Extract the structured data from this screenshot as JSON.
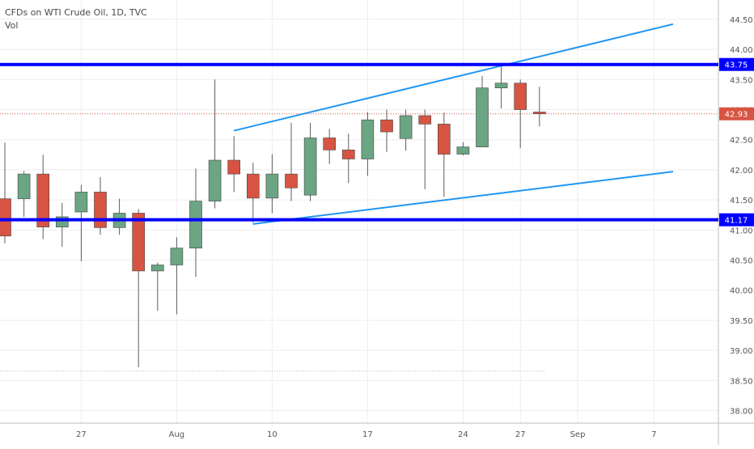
{
  "legend": {
    "title": "CFDs on WTI Crude Oil, 1D, TVC",
    "indicator": "Vol"
  },
  "colors": {
    "up_body": "#6ba583",
    "down_body": "#d75442",
    "wick": "#5c5c5c",
    "support_resistance": "#0000ff",
    "channel": "#2196f3",
    "price_line": "#d75442",
    "grid": "#eeeeee",
    "axis_text": "#555555"
  },
  "chart_data": {
    "type": "candlestick",
    "title": "CFDs on WTI Crude Oil, 1D, TVC",
    "ylim": [
      37.9,
      44.7
    ],
    "y_ticks": [
      "38.00",
      "38.50",
      "39.00",
      "39.50",
      "40.00",
      "40.50",
      "41.00",
      "41.50",
      "42.00",
      "42.50",
      "43.00",
      "43.50",
      "44.00",
      "44.50"
    ],
    "x_ticks": [
      {
        "label": "27",
        "day": 4
      },
      {
        "label": "Aug",
        "day": 9
      },
      {
        "label": "10",
        "day": 14
      },
      {
        "label": "17",
        "day": 19
      },
      {
        "label": "24",
        "day": 24
      },
      {
        "label": "27",
        "day": 27
      },
      {
        "label": "Sep",
        "day": 30
      },
      {
        "label": "7",
        "day": 34
      }
    ],
    "candles": [
      {
        "o": 41.52,
        "h": 42.45,
        "l": 40.78,
        "c": 40.9
      },
      {
        "o": 41.52,
        "h": 41.98,
        "l": 41.22,
        "c": 41.93
      },
      {
        "o": 41.93,
        "h": 42.25,
        "l": 40.85,
        "c": 41.05
      },
      {
        "o": 41.05,
        "h": 41.45,
        "l": 40.72,
        "c": 41.22
      },
      {
        "o": 41.3,
        "h": 41.75,
        "l": 40.48,
        "c": 41.63
      },
      {
        "o": 41.63,
        "h": 41.88,
        "l": 40.92,
        "c": 41.04
      },
      {
        "o": 41.04,
        "h": 41.52,
        "l": 40.92,
        "c": 41.28
      },
      {
        "o": 41.28,
        "h": 41.35,
        "l": 38.72,
        "c": 40.32
      },
      {
        "o": 40.32,
        "h": 40.46,
        "l": 39.66,
        "c": 40.42
      },
      {
        "o": 40.42,
        "h": 40.88,
        "l": 39.6,
        "c": 40.7
      },
      {
        "o": 40.7,
        "h": 42.02,
        "l": 40.22,
        "c": 41.48
      },
      {
        "o": 41.48,
        "h": 43.5,
        "l": 41.36,
        "c": 42.16
      },
      {
        "o": 42.16,
        "h": 42.56,
        "l": 41.63,
        "c": 41.93
      },
      {
        "o": 41.93,
        "h": 42.12,
        "l": 41.12,
        "c": 41.53
      },
      {
        "o": 41.53,
        "h": 42.26,
        "l": 41.28,
        "c": 41.93
      },
      {
        "o": 41.93,
        "h": 42.78,
        "l": 41.48,
        "c": 41.7
      },
      {
        "o": 41.58,
        "h": 42.78,
        "l": 41.48,
        "c": 42.53
      },
      {
        "o": 42.53,
        "h": 42.68,
        "l": 42.1,
        "c": 42.33
      },
      {
        "o": 42.33,
        "h": 42.6,
        "l": 41.78,
        "c": 42.18
      },
      {
        "o": 42.18,
        "h": 42.96,
        "l": 41.9,
        "c": 42.83
      },
      {
        "o": 42.83,
        "h": 43.0,
        "l": 42.3,
        "c": 42.63
      },
      {
        "o": 42.52,
        "h": 43.0,
        "l": 42.32,
        "c": 42.9
      },
      {
        "o": 42.9,
        "h": 43.0,
        "l": 41.68,
        "c": 42.76
      },
      {
        "o": 42.76,
        "h": 42.95,
        "l": 41.55,
        "c": 42.26
      },
      {
        "o": 42.26,
        "h": 42.46,
        "l": 42.24,
        "c": 42.38
      },
      {
        "o": 42.38,
        "h": 43.56,
        "l": 42.38,
        "c": 43.36
      },
      {
        "o": 43.36,
        "h": 43.78,
        "l": 43.02,
        "c": 43.44
      },
      {
        "o": 43.44,
        "h": 43.5,
        "l": 42.36,
        "c": 43.0
      },
      {
        "o": 42.96,
        "h": 43.38,
        "l": 42.72,
        "c": 42.93
      }
    ],
    "horizontal_levels": [
      {
        "value": 43.75,
        "label": "43.75"
      },
      {
        "value": 41.17,
        "label": "41.17"
      }
    ],
    "current_price": {
      "value": 42.93,
      "label": "42.93"
    },
    "channel_lines": [
      {
        "from": {
          "day": 12,
          "price": 42.65
        },
        "to": {
          "day": 35,
          "price": 44.42
        }
      },
      {
        "from": {
          "day": 13,
          "price": 41.1
        },
        "to": {
          "day": 35,
          "price": 41.97
        }
      }
    ],
    "volume_baseline": 38.66,
    "grid": true
  }
}
